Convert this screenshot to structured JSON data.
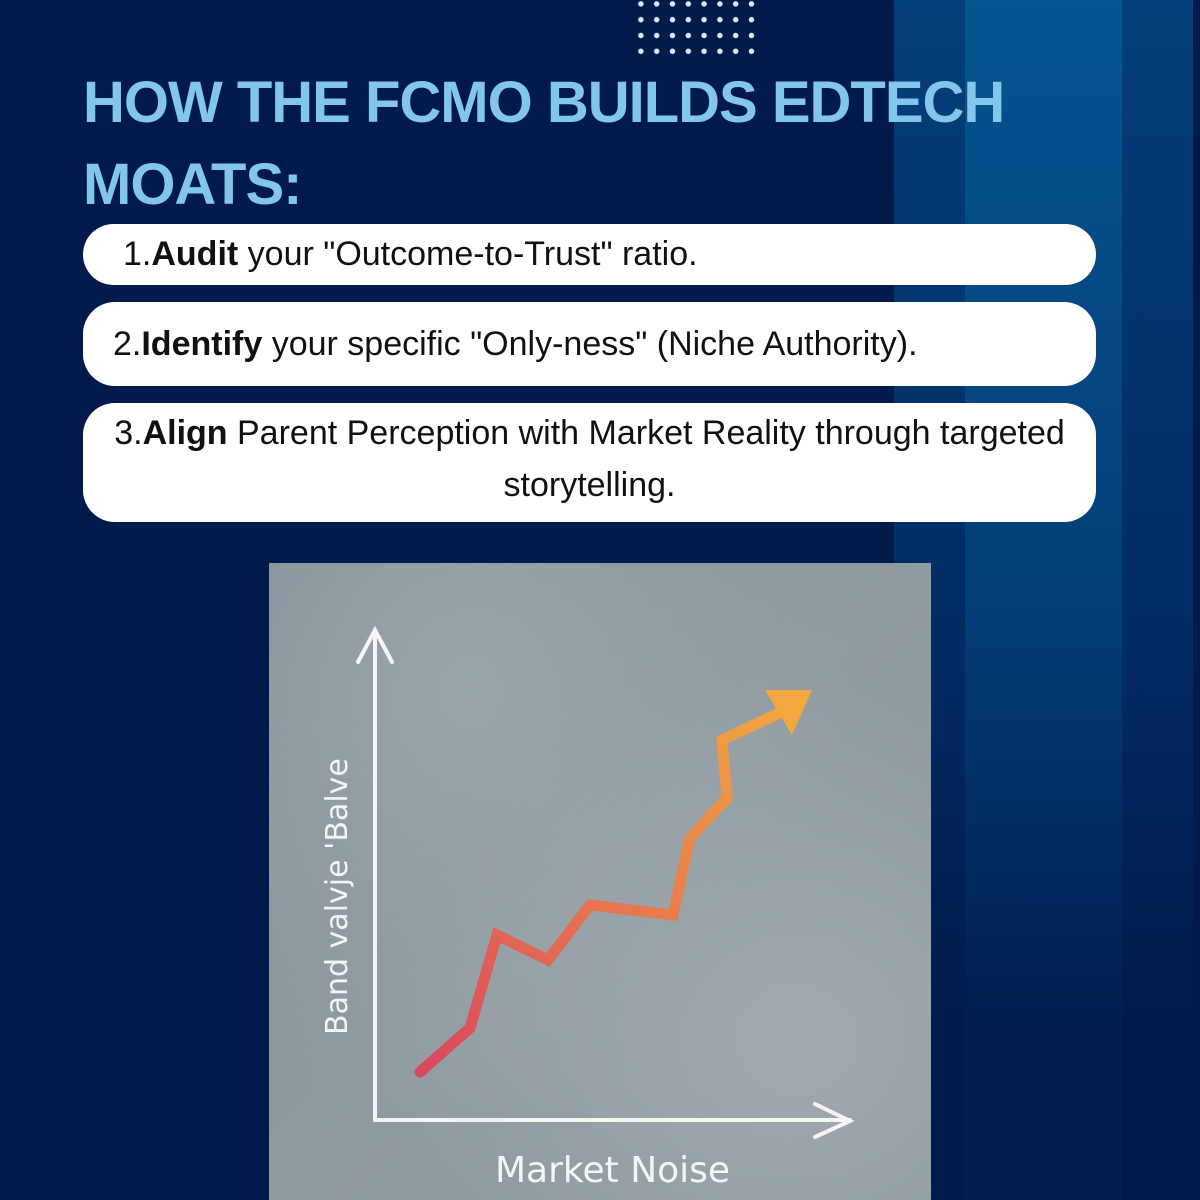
{
  "title": "HOW THE FCMO BUILDS EDTECH MOATS:",
  "steps": [
    {
      "number": "1.",
      "keyword": "Audit",
      "text": " your \"Outcome-to-Trust\" ratio."
    },
    {
      "number": "2.",
      "keyword": "Identify",
      "text": " your specific \"Only-ness\" (Niche Authority)."
    },
    {
      "number": "3.",
      "keyword": "Align",
      "text": " Parent Perception with Market Reality through targeted storytelling."
    }
  ],
  "illustration": {
    "y_label": "Band valvje 'Balve",
    "x_label": "Market Noise",
    "line_colors": [
      "#d9475f",
      "#f3a73e"
    ]
  },
  "colors": {
    "background": "#001b4b",
    "title": "#82c6ec",
    "pill": "#ffffff"
  }
}
